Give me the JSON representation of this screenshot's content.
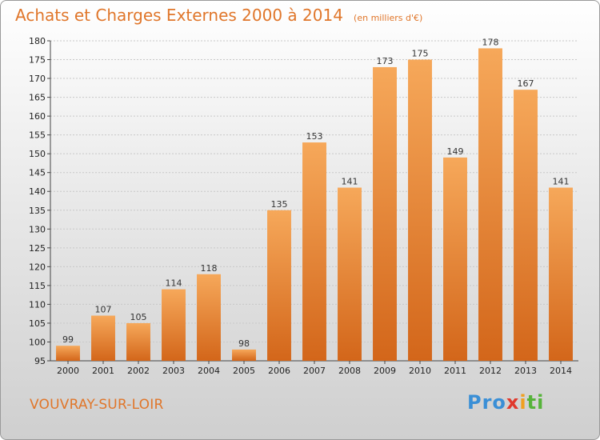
{
  "header": {
    "title": "Achats et Charges Externes 2000 à 2014",
    "subtitle": "(en milliers d'€)"
  },
  "commune": "VOUVRAY-SUR-LOIR",
  "logo": {
    "parts": [
      "Pro",
      "x",
      "i",
      "ti"
    ]
  },
  "colors": {
    "bar_light": "#f5a455",
    "bar_dark": "#d4671b",
    "title": "#e0762a"
  },
  "chart_data": {
    "type": "bar",
    "title": "Achats et Charges Externes 2000 à 2014",
    "subtitle": "(en milliers d'€)",
    "categories": [
      "2000",
      "2001",
      "2002",
      "2003",
      "2004",
      "2005",
      "2006",
      "2007",
      "2008",
      "2009",
      "2010",
      "2011",
      "2012",
      "2013",
      "2014"
    ],
    "values": [
      99,
      107,
      105,
      114,
      118,
      98,
      135,
      153,
      141,
      173,
      175,
      149,
      178,
      167,
      141
    ],
    "ylim": [
      95,
      180
    ],
    "yticks": [
      95,
      100,
      105,
      110,
      115,
      120,
      125,
      130,
      135,
      140,
      145,
      150,
      155,
      160,
      165,
      170,
      175,
      180
    ],
    "grid": true,
    "xlabel": "",
    "ylabel": ""
  }
}
